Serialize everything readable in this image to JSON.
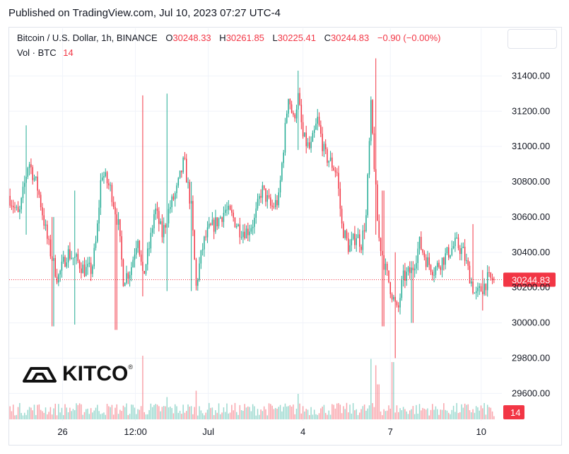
{
  "header": {
    "published": "Published on TradingView.com, Jul 10, 2023 07:27 UTC-4"
  },
  "legend": {
    "symbol": "Bitcoin / U.S. Dollar, 1h, BINANCE",
    "open_label": "O",
    "open": "30248.33",
    "high_label": "H",
    "high": "30261.85",
    "low_label": "L",
    "low": "30225.41",
    "close_label": "C",
    "close": "30244.83",
    "change": "−0.90 (−0.00%)",
    "vol_label": "Vol · BTC",
    "vol_value": "14"
  },
  "logo": {
    "text": "KITCO",
    "reg": "®"
  },
  "colors": {
    "up": "#22ab94",
    "down": "#f23645",
    "price_line": "#f23645"
  },
  "chart_data": {
    "type": "candlestick",
    "title": "Bitcoin / U.S. Dollar, 1h, BINANCE",
    "y_ticks": [
      29600,
      29800,
      30000,
      30200,
      30400,
      30600,
      30800,
      31000,
      31200,
      31400
    ],
    "y_tick_labels": [
      "29600.00",
      "29800.00",
      "30000.00",
      "30200.00",
      "30400.00",
      "30600.00",
      "30800.00",
      "31000.00",
      "31200.00",
      "31400.00"
    ],
    "ylim": [
      29465,
      31590
    ],
    "x_ticks": [
      {
        "label": "26",
        "t": 0.11
      },
      {
        "label": "12:00",
        "t": 0.26
      },
      {
        "label": "Jul",
        "t": 0.41
      },
      {
        "label": "4",
        "t": 0.605
      },
      {
        "label": "7",
        "t": 0.785
      },
      {
        "label": "10",
        "t": 0.972
      }
    ],
    "current_price": 30244.83,
    "current_price_label": "30244.83",
    "current_volume_label": "14",
    "grid": true,
    "anchors": [
      [
        0,
        30720
      ],
      [
        0.02,
        30600
      ],
      [
        0.04,
        30920
      ],
      [
        0.06,
        30750
      ],
      [
        0.08,
        30450
      ],
      [
        0.1,
        30250
      ],
      [
        0.12,
        30400
      ],
      [
        0.14,
        30350
      ],
      [
        0.155,
        30300
      ],
      [
        0.17,
        30300
      ],
      [
        0.18,
        30480
      ],
      [
        0.19,
        30860
      ],
      [
        0.21,
        30750
      ],
      [
        0.225,
        30550
      ],
      [
        0.235,
        30250
      ],
      [
        0.25,
        30300
      ],
      [
        0.265,
        30500
      ],
      [
        0.275,
        30250
      ],
      [
        0.29,
        30450
      ],
      [
        0.3,
        30650
      ],
      [
        0.315,
        30500
      ],
      [
        0.33,
        30650
      ],
      [
        0.345,
        30750
      ],
      [
        0.36,
        30920
      ],
      [
        0.375,
        30650
      ],
      [
        0.385,
        30200
      ],
      [
        0.39,
        30300
      ],
      [
        0.4,
        30450
      ],
      [
        0.41,
        30520
      ],
      [
        0.43,
        30580
      ],
      [
        0.445,
        30640
      ],
      [
        0.46,
        30600
      ],
      [
        0.475,
        30530
      ],
      [
        0.49,
        30520
      ],
      [
        0.505,
        30580
      ],
      [
        0.52,
        30760
      ],
      [
        0.54,
        30650
      ],
      [
        0.555,
        30700
      ],
      [
        0.565,
        31000
      ],
      [
        0.575,
        31300
      ],
      [
        0.585,
        31150
      ],
      [
        0.595,
        31280
      ],
      [
        0.605,
        31050
      ],
      [
        0.62,
        30980
      ],
      [
        0.635,
        31150
      ],
      [
        0.65,
        30950
      ],
      [
        0.66,
        30920
      ],
      [
        0.675,
        30850
      ],
      [
        0.685,
        30550
      ],
      [
        0.7,
        30420
      ],
      [
        0.715,
        30500
      ],
      [
        0.725,
        30450
      ],
      [
        0.735,
        30600
      ],
      [
        0.745,
        31220
      ],
      [
        0.76,
        30500
      ],
      [
        0.775,
        30300
      ],
      [
        0.79,
        30150
      ],
      [
        0.8,
        30050
      ],
      [
        0.81,
        30250
      ],
      [
        0.83,
        30300
      ],
      [
        0.845,
        30450
      ],
      [
        0.86,
        30350
      ],
      [
        0.875,
        30300
      ],
      [
        0.89,
        30350
      ],
      [
        0.905,
        30400
      ],
      [
        0.92,
        30450
      ],
      [
        0.935,
        30400
      ],
      [
        0.95,
        30250
      ],
      [
        0.96,
        30150
      ],
      [
        0.975,
        30200
      ],
      [
        0.985,
        30244.83
      ],
      [
        1.0,
        30244.83
      ]
    ],
    "candle_count": 300,
    "spikes": [
      {
        "t": 0.035,
        "high": 31120,
        "low": 30500
      },
      {
        "t": 0.09,
        "high": 30600,
        "low": 29980
      },
      {
        "t": 0.135,
        "high": 30750,
        "low": 29990
      },
      {
        "t": 0.22,
        "high": 30100,
        "low": 29960
      },
      {
        "t": 0.275,
        "high": 31290,
        "low": 30150
      },
      {
        "t": 0.325,
        "high": 31300,
        "low": 30180
      },
      {
        "t": 0.375,
        "high": 30800,
        "low": 30180
      },
      {
        "t": 0.595,
        "high": 31430,
        "low": 30980
      },
      {
        "t": 0.755,
        "high": 31500,
        "low": 30500
      },
      {
        "t": 0.77,
        "high": 30750,
        "low": 29980
      },
      {
        "t": 0.795,
        "high": 30400,
        "low": 29800
      },
      {
        "t": 0.83,
        "high": 30350,
        "low": 30000
      },
      {
        "t": 0.955,
        "high": 30560,
        "low": 30200
      },
      {
        "t": 0.975,
        "high": 30300,
        "low": 30070
      }
    ],
    "volume_spikes": [
      {
        "t": 0.275,
        "v": 1.0
      },
      {
        "t": 0.745,
        "v": 0.95
      },
      {
        "t": 0.755,
        "v": 0.85
      },
      {
        "t": 0.79,
        "v": 0.9
      },
      {
        "t": 0.76,
        "v": 0.55
      },
      {
        "t": 0.595,
        "v": 0.4
      },
      {
        "t": 0.385,
        "v": 0.45
      },
      {
        "t": 0.325,
        "v": 0.35
      }
    ]
  }
}
